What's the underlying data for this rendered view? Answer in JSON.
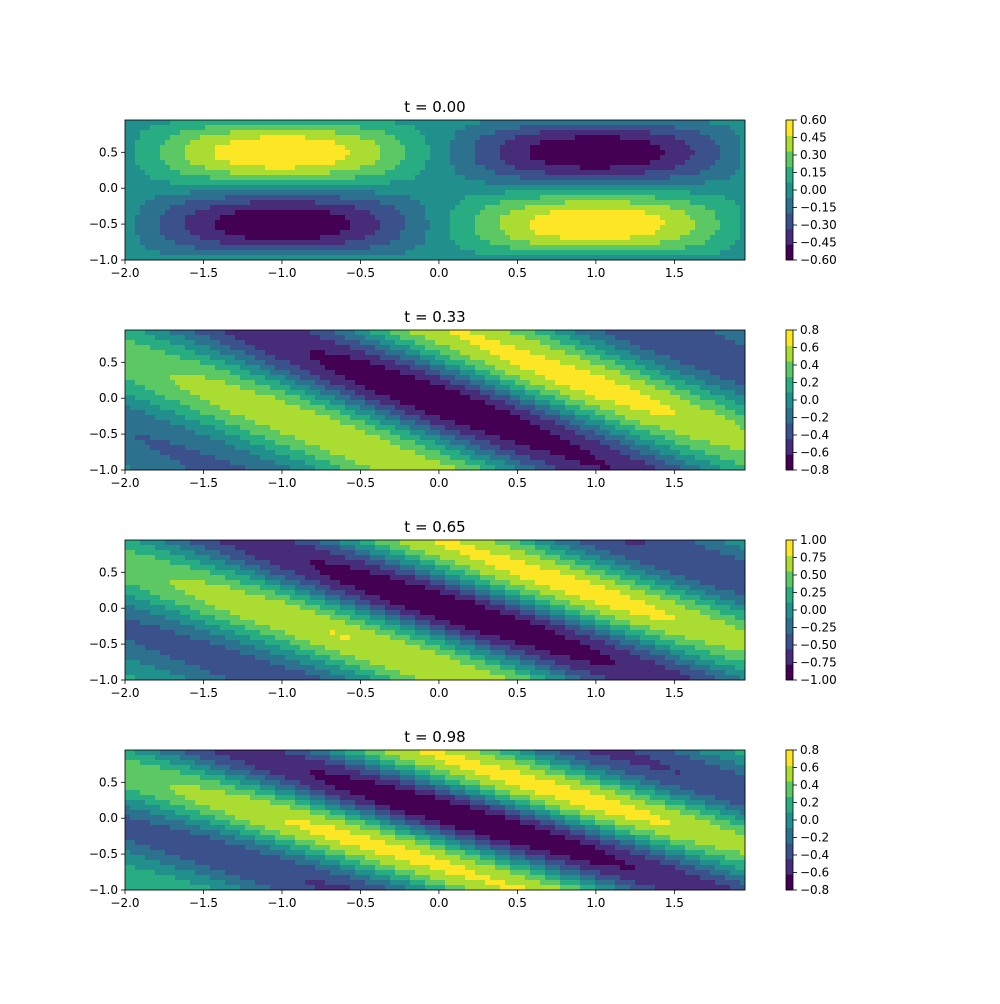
{
  "chart_data": [
    {
      "type": "heatmap",
      "title": "t = 0.00",
      "xlim": [
        -2.0,
        1.95
      ],
      "ylim": [
        -1.0,
        0.95
      ],
      "xticks": [
        -2.0,
        -1.5,
        -1.0,
        -0.5,
        0.0,
        0.5,
        1.0,
        1.5
      ],
      "xtick_labels": [
        "−2.0",
        "−1.5",
        "−1.0",
        "−0.5",
        "0.0",
        "0.5",
        "1.0",
        "1.5"
      ],
      "yticks": [
        -1.0,
        -0.5,
        0.0,
        0.5
      ],
      "ytick_labels": [
        "−1.0",
        "−0.5",
        "0.0",
        "0.5"
      ],
      "t": 0.0,
      "colorbar_range": [
        -0.6,
        0.6
      ],
      "colorbar_ticks": [
        -0.6,
        -0.45,
        -0.3,
        -0.15,
        0.0,
        0.15,
        0.3,
        0.45,
        0.6
      ],
      "colorbar_labels": [
        "−0.60",
        "−0.45",
        "−0.30",
        "−0.15",
        "0.00",
        "0.15",
        "0.30",
        "0.45",
        "0.60"
      ]
    },
    {
      "type": "heatmap",
      "title": "t = 0.33",
      "xlim": [
        -2.0,
        1.95
      ],
      "ylim": [
        -1.0,
        0.95
      ],
      "xticks": [
        -2.0,
        -1.5,
        -1.0,
        -0.5,
        0.0,
        0.5,
        1.0,
        1.5
      ],
      "xtick_labels": [
        "−2.0",
        "−1.5",
        "−1.0",
        "−0.5",
        "0.0",
        "0.5",
        "1.0",
        "1.5"
      ],
      "yticks": [
        -1.0,
        -0.5,
        0.0,
        0.5
      ],
      "ytick_labels": [
        "−1.0",
        "−0.5",
        "0.0",
        "0.5"
      ],
      "t": 0.33,
      "colorbar_range": [
        -0.8,
        0.8
      ],
      "colorbar_ticks": [
        -0.8,
        -0.6,
        -0.4,
        -0.2,
        0.0,
        0.2,
        0.4,
        0.6,
        0.8
      ],
      "colorbar_labels": [
        "−0.8",
        "−0.6",
        "−0.4",
        "−0.2",
        "0.0",
        "0.2",
        "0.4",
        "0.6",
        "0.8"
      ]
    },
    {
      "type": "heatmap",
      "title": "t = 0.65",
      "xlim": [
        -2.0,
        1.95
      ],
      "ylim": [
        -1.0,
        0.95
      ],
      "xticks": [
        -2.0,
        -1.5,
        -1.0,
        -0.5,
        0.0,
        0.5,
        1.0,
        1.5
      ],
      "xtick_labels": [
        "−2.0",
        "−1.5",
        "−1.0",
        "−0.5",
        "0.0",
        "0.5",
        "1.0",
        "1.5"
      ],
      "yticks": [
        -1.0,
        -0.5,
        0.0,
        0.5
      ],
      "ytick_labels": [
        "−1.0",
        "−0.5",
        "0.0",
        "0.5"
      ],
      "t": 0.65,
      "colorbar_range": [
        -1.0,
        1.0
      ],
      "colorbar_ticks": [
        -1.0,
        -0.75,
        -0.5,
        -0.25,
        0.0,
        0.25,
        0.5,
        0.75,
        1.0
      ],
      "colorbar_labels": [
        "−1.00",
        "−0.75",
        "−0.50",
        "−0.25",
        "0.00",
        "0.25",
        "0.50",
        "0.75",
        "1.00"
      ]
    },
    {
      "type": "heatmap",
      "title": "t = 0.98",
      "xlim": [
        -2.0,
        1.95
      ],
      "ylim": [
        -1.0,
        0.95
      ],
      "xticks": [
        -2.0,
        -1.5,
        -1.0,
        -0.5,
        0.0,
        0.5,
        1.0,
        1.5
      ],
      "xtick_labels": [
        "−2.0",
        "−1.5",
        "−1.0",
        "−0.5",
        "0.0",
        "0.5",
        "1.0",
        "1.5"
      ],
      "yticks": [
        -1.0,
        -0.5,
        0.0,
        0.5
      ],
      "ytick_labels": [
        "−1.0",
        "−0.5",
        "0.0",
        "0.5"
      ],
      "t": 0.98,
      "colorbar_range": [
        -0.8,
        0.8
      ],
      "colorbar_ticks": [
        -0.8,
        -0.6,
        -0.4,
        -0.2,
        0.0,
        0.2,
        0.4,
        0.6,
        0.8
      ],
      "colorbar_labels": [
        "−0.8",
        "−0.6",
        "−0.4",
        "−0.2",
        "0.0",
        "0.2",
        "0.4",
        "0.6",
        "0.8"
      ]
    }
  ],
  "colormap": "viridis",
  "level_colors": [
    "#440154",
    "#472c7a",
    "#3b518b",
    "#2c718e",
    "#21908d",
    "#27ad81",
    "#5cc863",
    "#aadc32",
    "#fde725"
  ]
}
